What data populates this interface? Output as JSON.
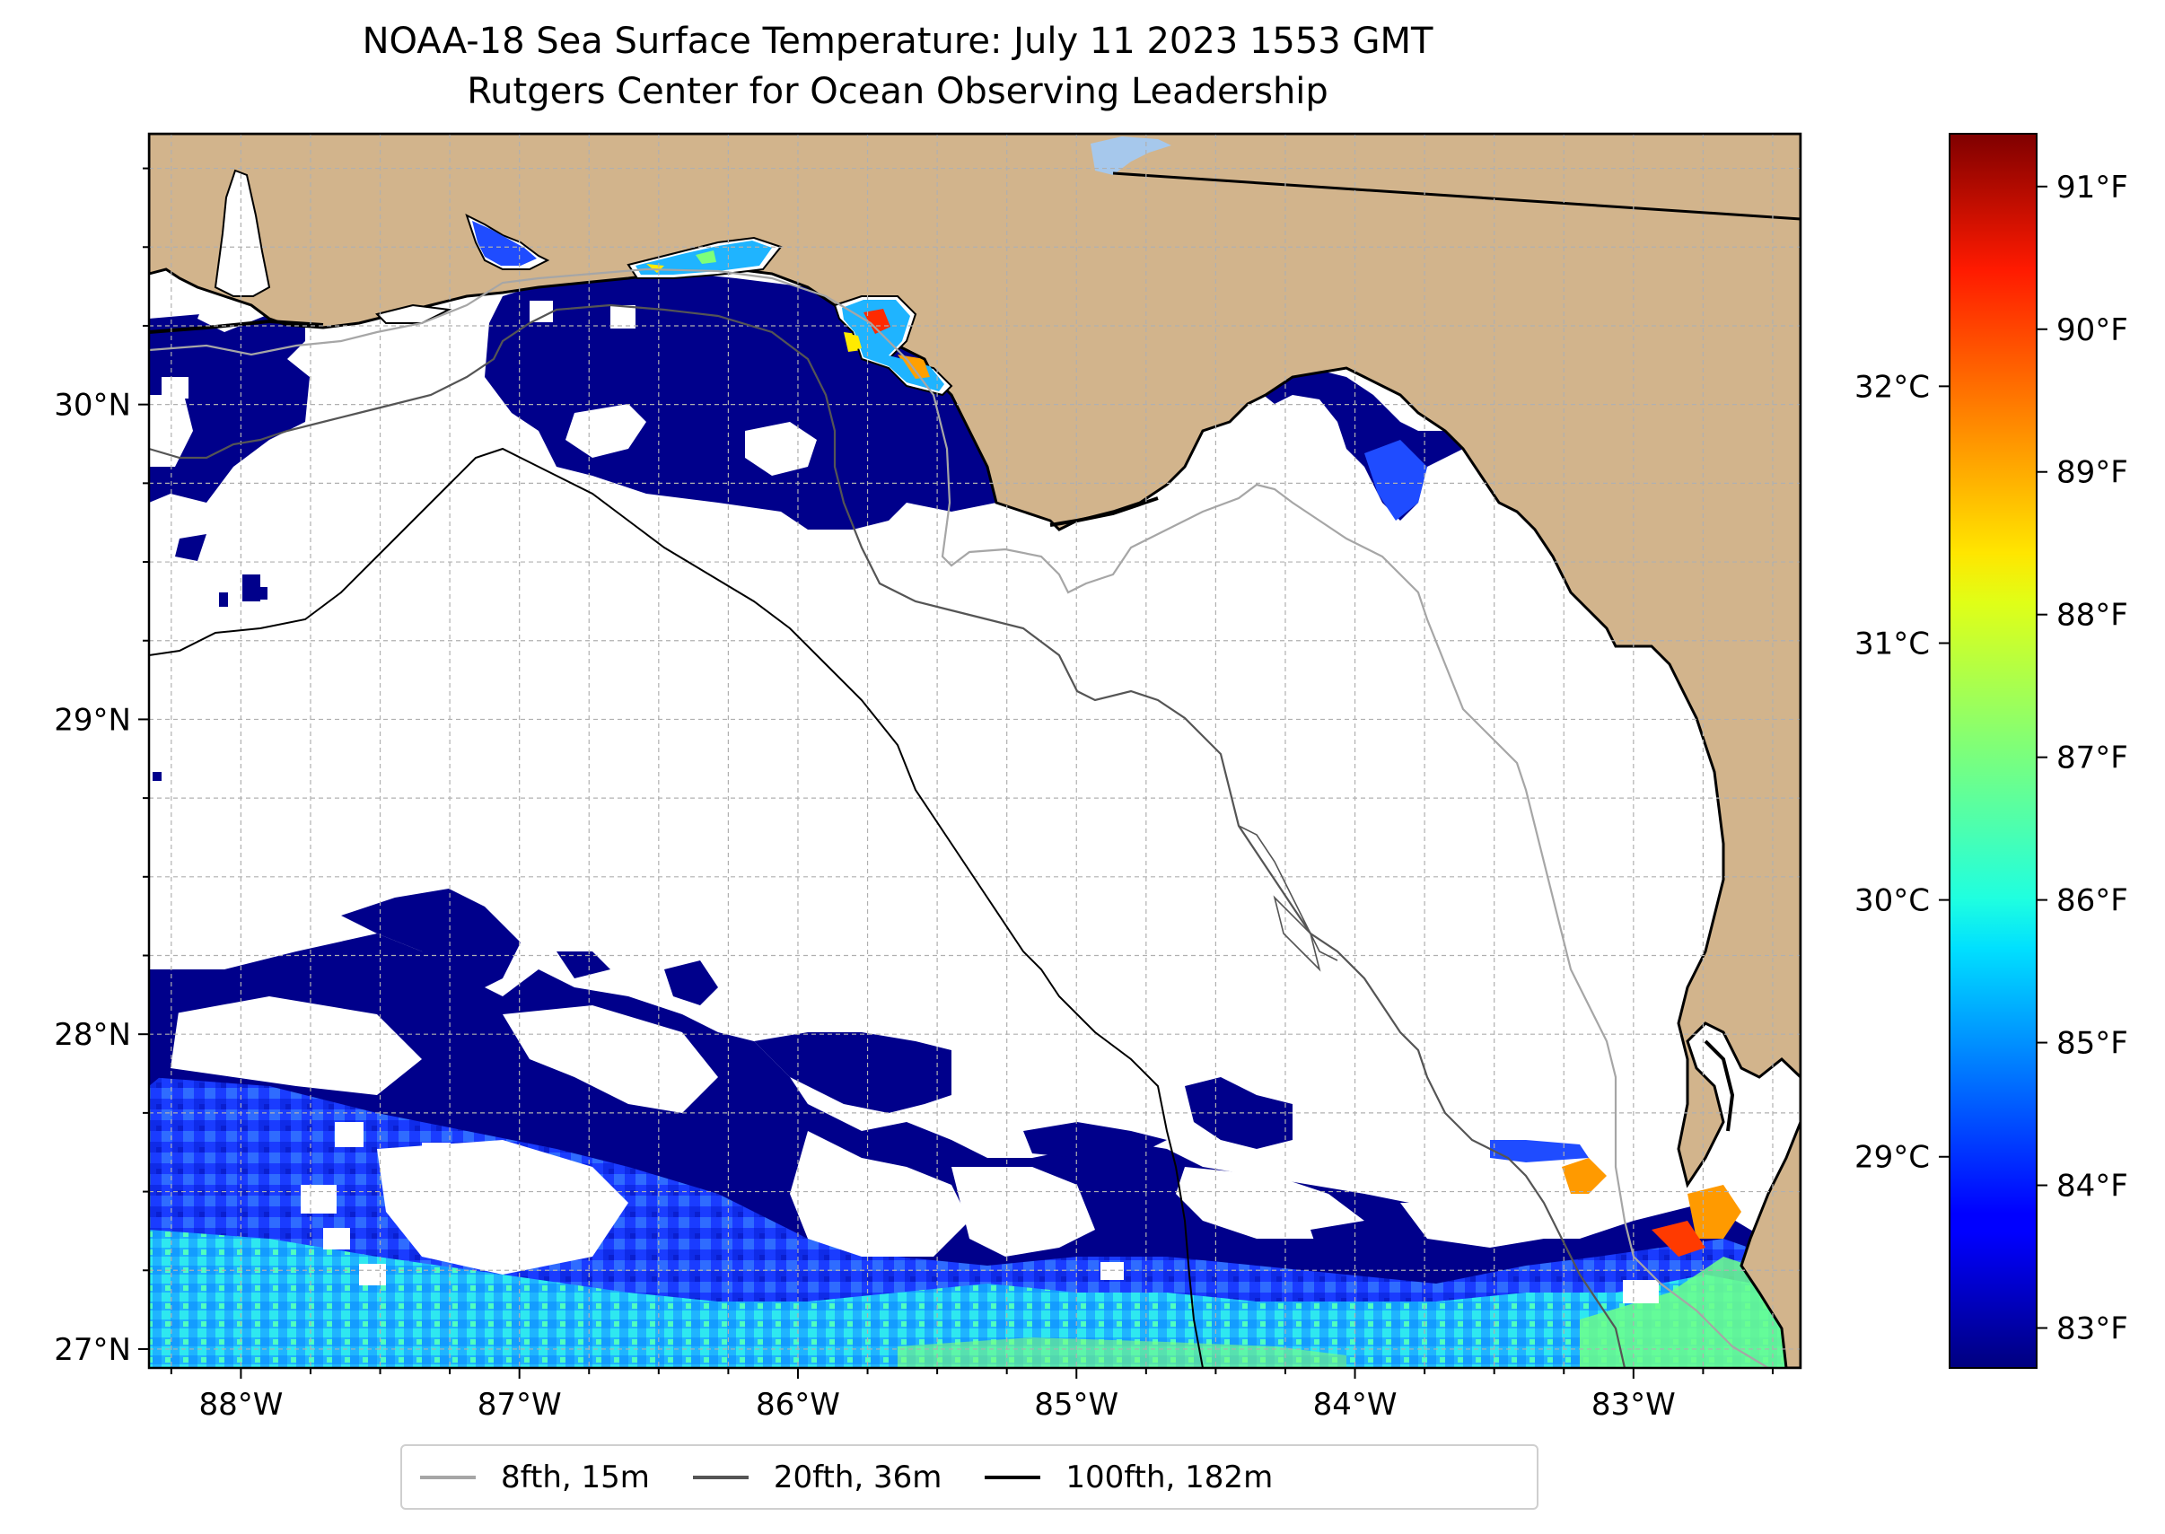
{
  "title": "NOAA-18 Sea Surface Temperature: July 11 2023 1553 GMT",
  "subtitle": "Rutgers Center for Ocean Observing Leadership",
  "map": {
    "lon_range": [
      -88.33,
      -82.4
    ],
    "lat_range": [
      26.94,
      30.86
    ],
    "lon_ticks": [
      {
        "value": -88,
        "label": "88°W"
      },
      {
        "value": -87,
        "label": "87°W"
      },
      {
        "value": -86,
        "label": "86°W"
      },
      {
        "value": -85,
        "label": "85°W"
      },
      {
        "value": -84,
        "label": "84°W"
      },
      {
        "value": -83,
        "label": "83°W"
      }
    ],
    "lat_ticks": [
      {
        "value": 27,
        "label": "27°N"
      },
      {
        "value": 28,
        "label": "28°N"
      },
      {
        "value": 29,
        "label": "29°N"
      },
      {
        "value": 30,
        "label": "30°N"
      }
    ],
    "gridlines": true,
    "colors": {
      "land": "#d2b48c",
      "cloud": "#ffffff",
      "gridline": "#b0b0b0",
      "isobath_8fth": "#a6a6a6",
      "isobath_20fth": "#555555",
      "isobath_100fth": "#000000"
    }
  },
  "colorbar": {
    "colormap": "jet",
    "celsius_ticks": [
      {
        "value": 29,
        "label": "29°C"
      },
      {
        "value": 30,
        "label": "30°C"
      },
      {
        "value": 31,
        "label": "31°C"
      },
      {
        "value": 32,
        "label": "32°C"
      }
    ],
    "fahrenheit_ticks": [
      {
        "value": 83,
        "label": "83°F"
      },
      {
        "value": 84,
        "label": "84°F"
      },
      {
        "value": 85,
        "label": "85°F"
      },
      {
        "value": 86,
        "label": "86°F"
      },
      {
        "value": 87,
        "label": "87°F"
      },
      {
        "value": 88,
        "label": "88°F"
      },
      {
        "value": 89,
        "label": "89°F"
      },
      {
        "value": 90,
        "label": "90°F"
      },
      {
        "value": 91,
        "label": "91°F"
      }
    ],
    "range_f": [
      82.72,
      91.37
    ]
  },
  "legend": {
    "placement": "bottom-center",
    "items": [
      {
        "label": "8fth, 15m",
        "color": "#a6a6a6"
      },
      {
        "label": "20fth, 36m",
        "color": "#555555"
      },
      {
        "label": "100fth, 182m",
        "color": "#000000"
      }
    ]
  }
}
